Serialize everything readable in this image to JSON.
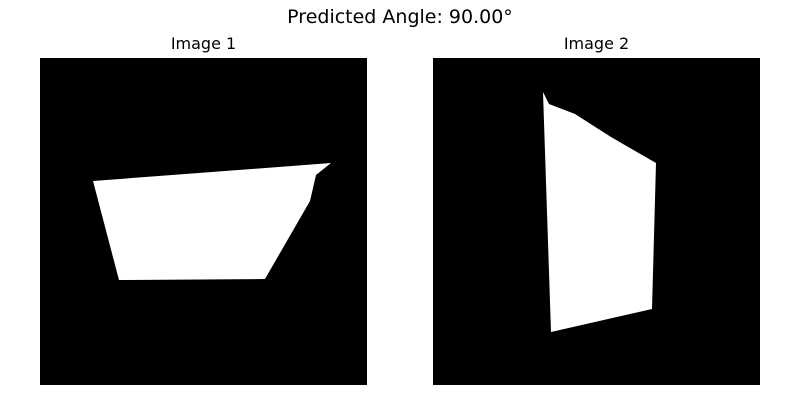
{
  "figure": {
    "suptitle": "Predicted Angle: 90.00°",
    "panels": [
      {
        "title": "Image 1"
      },
      {
        "title": "Image 2"
      }
    ]
  },
  "colors": {
    "background": "#000000",
    "shape": "#ffffff"
  }
}
